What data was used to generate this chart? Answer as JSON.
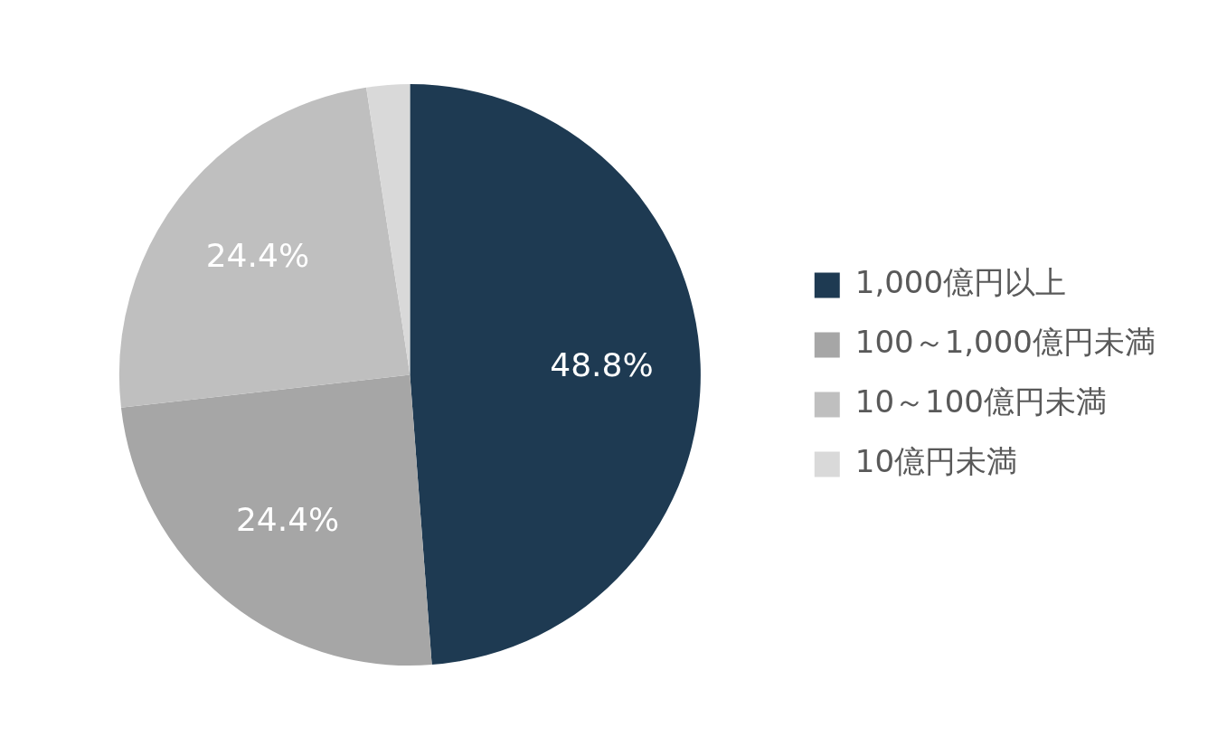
{
  "chart_data": {
    "type": "pie",
    "categories": [
      "1,000億円以上",
      "100～1,000億円未満",
      "10～100億円未満",
      "10億円未満"
    ],
    "values": [
      48.8,
      24.4,
      24.4,
      2.4
    ],
    "colors": [
      "#1e3a52",
      "#a6a6a6",
      "#bfbfbf",
      "#d9d9d9"
    ],
    "value_labels": [
      "48.8%",
      "24.4%",
      "24.4%",
      null
    ],
    "legend": "right"
  }
}
